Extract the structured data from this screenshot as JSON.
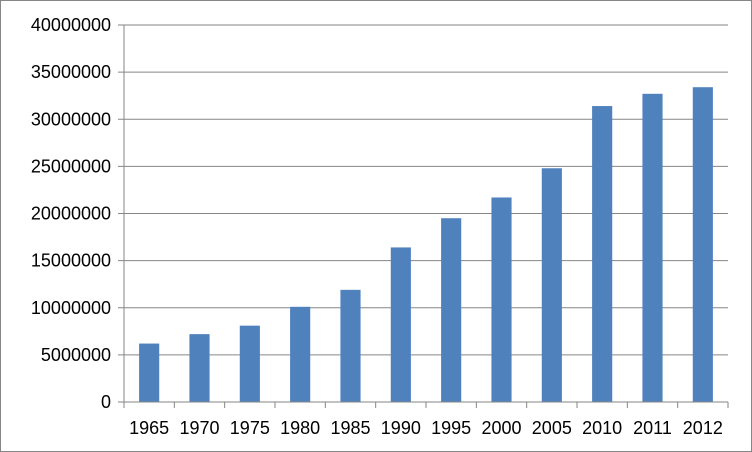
{
  "chart_data": {
    "type": "bar",
    "categories": [
      "1965",
      "1970",
      "1975",
      "1980",
      "1985",
      "1990",
      "1995",
      "2000",
      "2005",
      "2010",
      "2011",
      "2012"
    ],
    "series": [
      {
        "values": [
          6200000,
          7200000,
          8100000,
          10100000,
          11900000,
          16400000,
          19500000,
          21700000,
          24800000,
          31400000,
          32700000,
          33400000
        ],
        "color": "#4F81BD"
      }
    ],
    "yticks": [
      "0",
      "5000000",
      "10000000",
      "15000000",
      "20000000",
      "25000000",
      "30000000",
      "35000000",
      "40000000"
    ],
    "ylim": [
      0,
      40000000
    ],
    "grid": true,
    "legend": "none",
    "title": "",
    "xlabel": "",
    "ylabel": ""
  }
}
